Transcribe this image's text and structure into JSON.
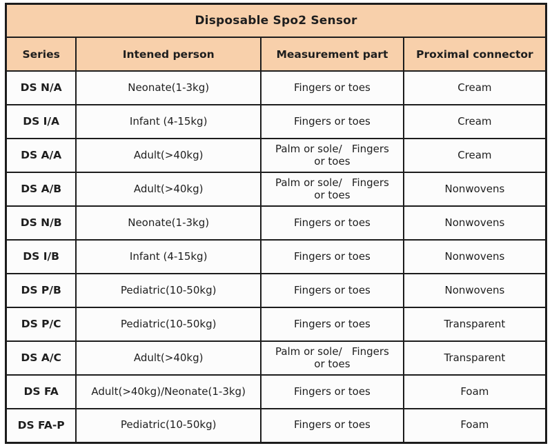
{
  "table": {
    "title": "Disposable Spo2 Sensor",
    "columns": [
      "Series",
      "Intened person",
      "Measurement part",
      "Proximal connector"
    ],
    "rows": [
      {
        "series": "DS N/A",
        "person": "Neonate(1-3kg)",
        "part": "Fingers or toes",
        "connector": "Cream"
      },
      {
        "series": "DS I/A",
        "person": "Infant (4-15kg)",
        "part": "Fingers or toes",
        "connector": "Cream"
      },
      {
        "series": "DS A/A",
        "person": "Adult(>40kg)",
        "part": "Palm or sole/   Fingers\nor toes",
        "connector": "Cream"
      },
      {
        "series": "DS A/B",
        "person": "Adult(>40kg)",
        "part": "Palm or sole/   Fingers\nor toes",
        "connector": "Nonwovens"
      },
      {
        "series": "DS N/B",
        "person": "Neonate(1-3kg)",
        "part": "Fingers or toes",
        "connector": "Nonwovens"
      },
      {
        "series": "DS I/B",
        "person": "Infant (4-15kg)",
        "part": "Fingers or toes",
        "connector": "Nonwovens"
      },
      {
        "series": "DS P/B",
        "person": "Pediatric(10-50kg)",
        "part": "Fingers or toes",
        "connector": "Nonwovens"
      },
      {
        "series": "DS P/C",
        "person": "Pediatric(10-50kg)",
        "part": "Fingers or toes",
        "connector": "Transparent"
      },
      {
        "series": "DS A/C",
        "person": "Adult(>40kg)",
        "part": "Palm or sole/   Fingers\nor toes",
        "connector": "Transparent"
      },
      {
        "series": "DS FA",
        "person": "Adult(>40kg)/Neonate(1-3kg)",
        "part": "Fingers or toes",
        "connector": "Foam"
      },
      {
        "series": "DS FA-P",
        "person": "Pediatric(10-50kg)",
        "part": "Fingers or toes",
        "connector": "Foam"
      }
    ]
  },
  "colors": {
    "header_bg": "#f8d0ab",
    "border": "#1c1c1c",
    "cell_bg": "#fcfcfc",
    "text": "#1e1e1e"
  }
}
